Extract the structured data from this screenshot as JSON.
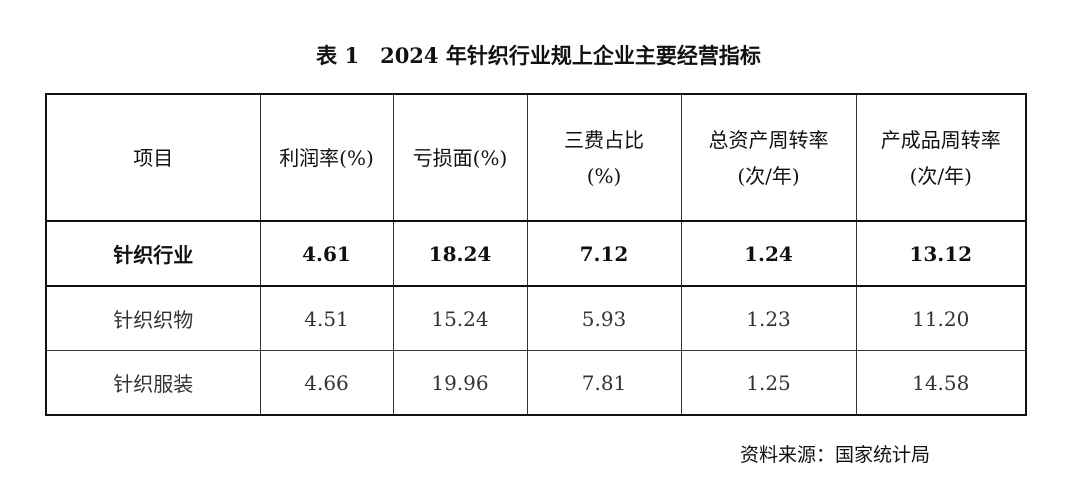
{
  "title": "表 1　2024 年针织行业规上企业主要经营指标",
  "table": {
    "header": [
      [
        "项目"
      ],
      [
        "利润率(%)"
      ],
      [
        "亏损面(%)"
      ],
      [
        "三费占比",
        "(%)"
      ],
      [
        "总资产周转率",
        "(次/年)"
      ],
      [
        "产成品周转率",
        "(次/年)"
      ]
    ],
    "rows": [
      [
        "针织行业",
        "4.61",
        "18.24",
        "7.12",
        "1.24",
        "13.12"
      ],
      [
        "针织织物",
        "4.51",
        "15.24",
        "5.93",
        "1.23",
        "11.20"
      ],
      [
        "针织服装",
        "4.66",
        "19.96",
        "7.81",
        "1.25",
        "14.58"
      ]
    ]
  },
  "source": "资料来源：国家统计局"
}
